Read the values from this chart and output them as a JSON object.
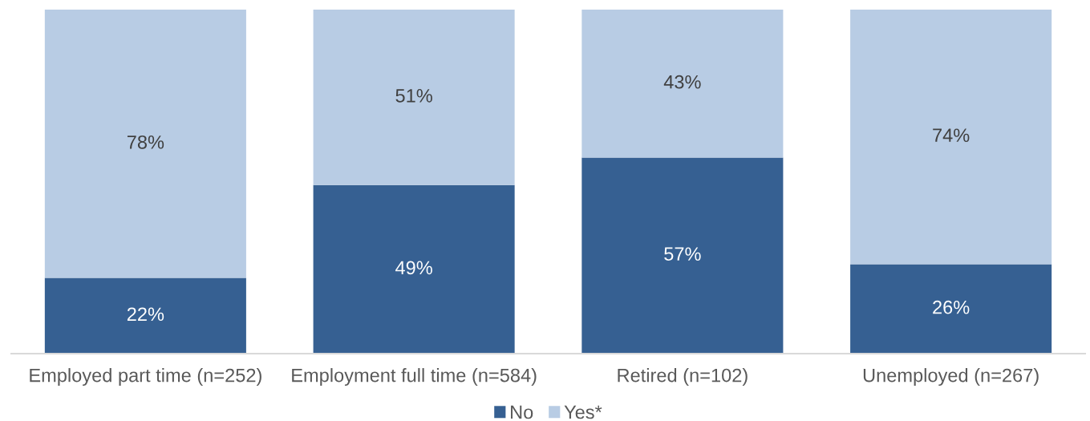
{
  "chart_data": {
    "type": "bar",
    "stacked": true,
    "categories": [
      "Employed part time (n=252)",
      "Employment full time (n=584)",
      "Retired (n=102)",
      "Unemployed (n=267)"
    ],
    "series": [
      {
        "name": "No",
        "color": "#366092",
        "values": [
          22,
          49,
          57,
          26
        ],
        "value_labels": [
          "22%",
          "49%",
          "57%",
          "26%"
        ]
      },
      {
        "name": "Yes*",
        "color": "#b8cce4",
        "values": [
          78,
          51,
          43,
          74
        ],
        "value_labels": [
          "78%",
          "51%",
          "43%",
          "74%"
        ]
      }
    ],
    "legend": "bottom"
  }
}
